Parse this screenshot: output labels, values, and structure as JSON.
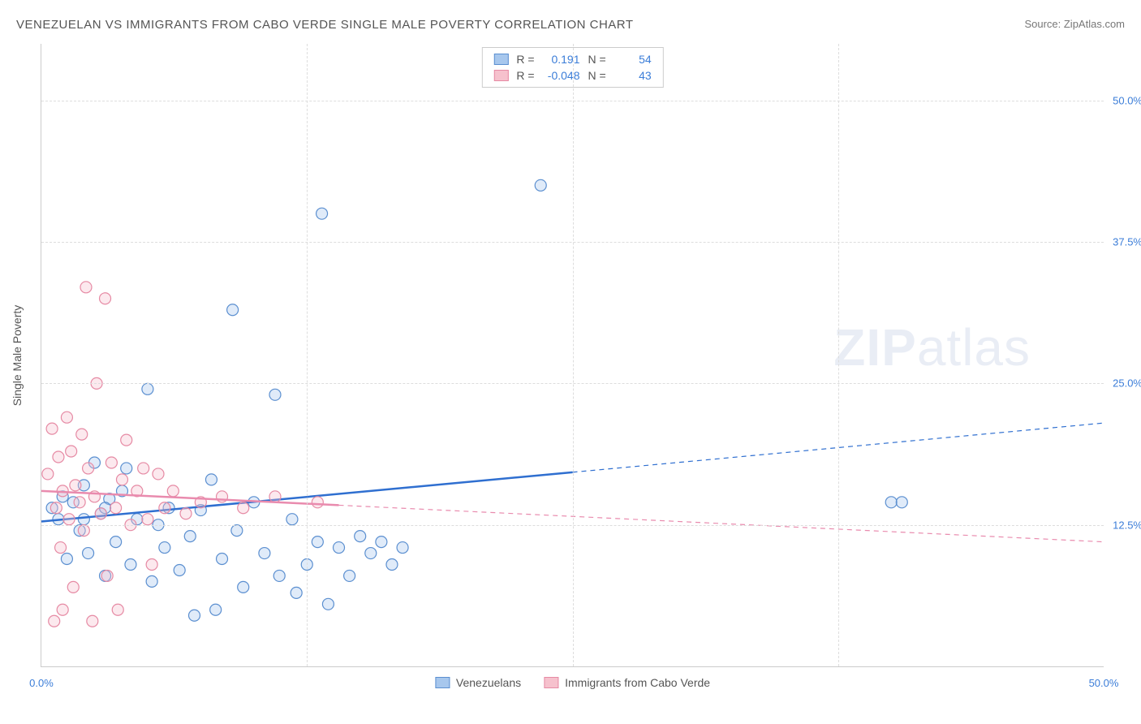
{
  "title": "VENEZUELAN VS IMMIGRANTS FROM CABO VERDE SINGLE MALE POVERTY CORRELATION CHART",
  "source_label": "Source: ZipAtlas.com",
  "y_axis_title": "Single Male Poverty",
  "watermark": {
    "bold": "ZIP",
    "light": "atlas"
  },
  "chart": {
    "type": "scatter",
    "background_color": "#ffffff",
    "grid_color": "#dddddd",
    "axis_color": "#cccccc",
    "tick_label_color": "#3b7dd8",
    "tick_fontsize": 13,
    "title_fontsize": 15,
    "xlim": [
      0,
      50
    ],
    "ylim": [
      0,
      55
    ],
    "x_ticks": [
      {
        "value": 0,
        "label": "0.0%"
      },
      {
        "value": 50,
        "label": "50.0%"
      }
    ],
    "y_ticks": [
      {
        "value": 12.5,
        "label": "12.5%"
      },
      {
        "value": 25.0,
        "label": "25.0%"
      },
      {
        "value": 37.5,
        "label": "37.5%"
      },
      {
        "value": 50.0,
        "label": "50.0%"
      }
    ],
    "x_grid_at": [
      12.5,
      25.0,
      37.5
    ],
    "marker_radius": 7,
    "marker_stroke_width": 1.2,
    "marker_fill_opacity": 0.35,
    "trend_line_width": 2.5,
    "series": [
      {
        "key": "venezuelans",
        "label": "Venezuelans",
        "marker_fill": "#a7c7ed",
        "marker_stroke": "#5b8fd0",
        "trend_color": "#2f6fd0",
        "trend_solid_xmax": 25,
        "trend": {
          "x1": 0,
          "y1": 12.8,
          "x2": 50,
          "y2": 21.5
        },
        "R": "0.191",
        "N": "54",
        "points": [
          [
            0.5,
            14.0
          ],
          [
            0.8,
            13.0
          ],
          [
            1.0,
            15.0
          ],
          [
            1.2,
            9.5
          ],
          [
            1.5,
            14.5
          ],
          [
            1.8,
            12.0
          ],
          [
            2.0,
            16.0
          ],
          [
            2.2,
            10.0
          ],
          [
            2.5,
            18.0
          ],
          [
            2.8,
            13.5
          ],
          [
            3.0,
            8.0
          ],
          [
            3.2,
            14.8
          ],
          [
            3.5,
            11.0
          ],
          [
            3.8,
            15.5
          ],
          [
            4.0,
            17.5
          ],
          [
            4.2,
            9.0
          ],
          [
            4.5,
            13.0
          ],
          [
            5.0,
            24.5
          ],
          [
            5.2,
            7.5
          ],
          [
            5.5,
            12.5
          ],
          [
            5.8,
            10.5
          ],
          [
            6.0,
            14.0
          ],
          [
            6.5,
            8.5
          ],
          [
            7.0,
            11.5
          ],
          [
            7.2,
            4.5
          ],
          [
            7.5,
            13.8
          ],
          [
            8.0,
            16.5
          ],
          [
            8.2,
            5.0
          ],
          [
            8.5,
            9.5
          ],
          [
            9.0,
            31.5
          ],
          [
            9.2,
            12.0
          ],
          [
            9.5,
            7.0
          ],
          [
            10.0,
            14.5
          ],
          [
            10.5,
            10.0
          ],
          [
            11.0,
            24.0
          ],
          [
            11.2,
            8.0
          ],
          [
            11.8,
            13.0
          ],
          [
            12.0,
            6.5
          ],
          [
            12.5,
            9.0
          ],
          [
            13.0,
            11.0
          ],
          [
            13.2,
            40.0
          ],
          [
            13.5,
            5.5
          ],
          [
            14.0,
            10.5
          ],
          [
            14.5,
            8.0
          ],
          [
            15.0,
            11.5
          ],
          [
            15.5,
            10.0
          ],
          [
            16.0,
            11.0
          ],
          [
            16.5,
            9.0
          ],
          [
            17.0,
            10.5
          ],
          [
            23.5,
            42.5
          ],
          [
            40.0,
            14.5
          ],
          [
            40.5,
            14.5
          ],
          [
            2.0,
            13.0
          ],
          [
            3.0,
            14.0
          ]
        ]
      },
      {
        "key": "cabo_verde",
        "label": "Immigrants from Cabo Verde",
        "marker_fill": "#f6c1cd",
        "marker_stroke": "#e68aa4",
        "trend_color": "#e98bae",
        "trend_solid_xmax": 14,
        "trend": {
          "x1": 0,
          "y1": 15.5,
          "x2": 50,
          "y2": 11.0
        },
        "R": "-0.048",
        "N": "43",
        "points": [
          [
            0.3,
            17.0
          ],
          [
            0.5,
            21.0
          ],
          [
            0.6,
            4.0
          ],
          [
            0.7,
            14.0
          ],
          [
            0.8,
            18.5
          ],
          [
            0.9,
            10.5
          ],
          [
            1.0,
            15.5
          ],
          [
            1.0,
            5.0
          ],
          [
            1.2,
            22.0
          ],
          [
            1.3,
            13.0
          ],
          [
            1.4,
            19.0
          ],
          [
            1.5,
            7.0
          ],
          [
            1.6,
            16.0
          ],
          [
            1.8,
            14.5
          ],
          [
            1.9,
            20.5
          ],
          [
            2.0,
            12.0
          ],
          [
            2.1,
            33.5
          ],
          [
            2.2,
            17.5
          ],
          [
            2.4,
            4.0
          ],
          [
            2.5,
            15.0
          ],
          [
            2.6,
            25.0
          ],
          [
            2.8,
            13.5
          ],
          [
            3.0,
            32.5
          ],
          [
            3.1,
            8.0
          ],
          [
            3.3,
            18.0
          ],
          [
            3.5,
            14.0
          ],
          [
            3.6,
            5.0
          ],
          [
            3.8,
            16.5
          ],
          [
            4.0,
            20.0
          ],
          [
            4.2,
            12.5
          ],
          [
            4.5,
            15.5
          ],
          [
            4.8,
            17.5
          ],
          [
            5.0,
            13.0
          ],
          [
            5.2,
            9.0
          ],
          [
            5.5,
            17.0
          ],
          [
            5.8,
            14.0
          ],
          [
            6.2,
            15.5
          ],
          [
            6.8,
            13.5
          ],
          [
            7.5,
            14.5
          ],
          [
            8.5,
            15.0
          ],
          [
            9.5,
            14.0
          ],
          [
            11.0,
            15.0
          ],
          [
            13.0,
            14.5
          ]
        ]
      }
    ]
  },
  "stats_box": {
    "r_label": "R =",
    "n_label": "N ="
  },
  "legend_labels": {
    "s1": "Venezuelans",
    "s2": "Immigrants from Cabo Verde"
  }
}
